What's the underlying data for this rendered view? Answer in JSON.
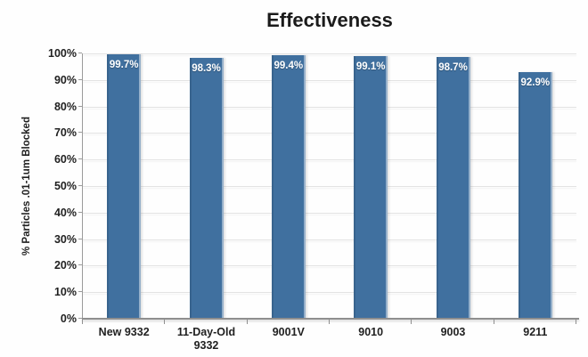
{
  "chart_data": {
    "type": "bar",
    "title": "Effectiveness",
    "xlabel": "",
    "ylabel": "% Particles .01-1um Blocked",
    "categories": [
      "New 9332",
      "11-Day-Old 9332",
      "9001V",
      "9010",
      "9003",
      "9211"
    ],
    "values": [
      99.7,
      98.3,
      99.4,
      99.1,
      98.7,
      92.9
    ],
    "value_labels": [
      "99.7%",
      "98.3%",
      "99.4%",
      "99.1%",
      "98.7%",
      "92.9%"
    ],
    "ylim": [
      0,
      100
    ],
    "ytick_step": 10,
    "ytick_labels": [
      "0%",
      "10%",
      "20%",
      "30%",
      "40%",
      "50%",
      "60%",
      "70%",
      "80%",
      "90%",
      "100%"
    ],
    "grid": true,
    "legend_position": "none",
    "colors": {
      "bar": "#40709F",
      "bar_highlight": "#B5CCDD",
      "value_label": "#FFFFFF",
      "gridline": "#E3E3E3",
      "axis": "#8F8F8F",
      "text": "#212121",
      "title": "#1B1B1B",
      "background": "#FFFFFF"
    }
  }
}
